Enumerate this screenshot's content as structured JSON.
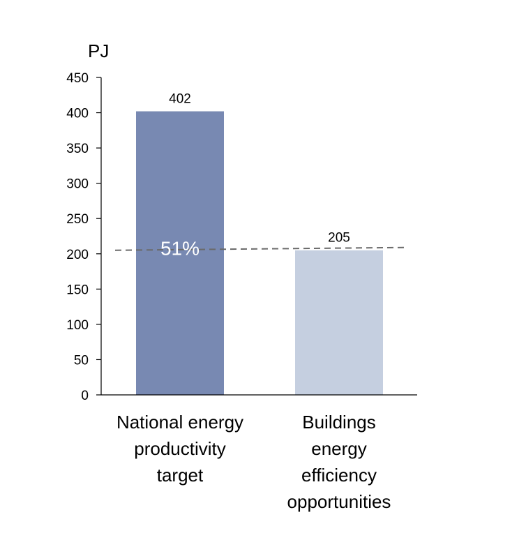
{
  "chart_data": {
    "type": "bar",
    "ylabel": "PJ",
    "ylim": [
      0,
      450
    ],
    "yticks": [
      0,
      50,
      100,
      150,
      200,
      250,
      300,
      350,
      400,
      450
    ],
    "categories": [
      [
        "National energy",
        "productivity",
        "target"
      ],
      [
        "Buildings",
        "energy",
        "efficiency",
        "opportunities"
      ]
    ],
    "values": [
      402,
      205
    ],
    "value_labels": [
      "402",
      "205"
    ],
    "bar_colors": [
      "#7889b2",
      "#c5cfe0"
    ],
    "reference_line": {
      "value": 205,
      "style": "dashed",
      "color": "#6a6a6a"
    },
    "annotation": {
      "text": "51%",
      "bar": 0
    },
    "grid": false,
    "legend": "none"
  }
}
